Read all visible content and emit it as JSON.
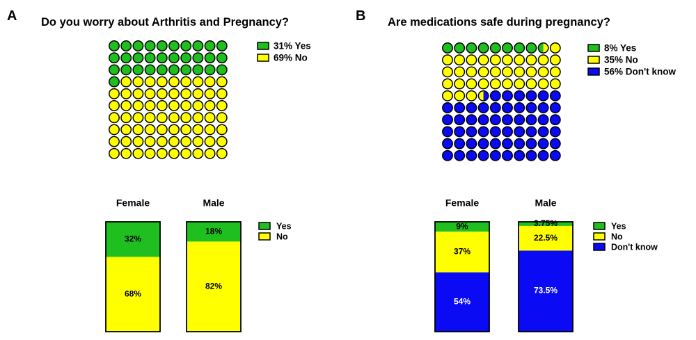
{
  "panels": [
    {
      "letter": "A",
      "title": "Do you worry about Arthritis and Pregnancy?"
    },
    {
      "letter": "B",
      "title": "Are medications safe during pregnancy?"
    }
  ],
  "colors": {
    "yes": "#1fbf1f",
    "no": "#ffff00",
    "dont_know": "#0a0af5",
    "stroke": "#000000"
  },
  "chart_data": [
    {
      "type": "waffle",
      "title": "Do you worry about Arthritis and Pregnancy?",
      "grid": [
        10,
        10
      ],
      "categories": [
        "Yes",
        "No"
      ],
      "values": [
        31,
        69
      ],
      "colors": [
        "#1fbf1f",
        "#ffff00"
      ],
      "legend": [
        "31% Yes",
        "69% No"
      ],
      "legend_position": "top-right"
    },
    {
      "type": "bar",
      "stacked": "percent",
      "categories": [
        "Female",
        "Male"
      ],
      "series": [
        {
          "name": "Yes",
          "values": [
            32,
            18
          ],
          "labels": [
            "32%",
            "18%"
          ],
          "color": "#1fbf1f"
        },
        {
          "name": "No",
          "values": [
            68,
            82
          ],
          "labels": [
            "68%",
            "82%"
          ],
          "color": "#ffff00"
        }
      ],
      "ylim": [
        0,
        100
      ],
      "legend_position": "top-right"
    },
    {
      "type": "waffle",
      "title": "Are medications safe during pregnancy?",
      "grid": [
        10,
        10
      ],
      "categories": [
        "Yes",
        "No",
        "Don't know"
      ],
      "values": [
        8.5,
        35,
        56.5
      ],
      "colors": [
        "#1fbf1f",
        "#ffff00",
        "#0a0af5"
      ],
      "legend": [
        "8% Yes",
        "35% No",
        "56% Don't know"
      ],
      "legend_position": "top-right"
    },
    {
      "type": "bar",
      "stacked": "percent",
      "categories": [
        "Female",
        "Male"
      ],
      "series": [
        {
          "name": "Yes",
          "values": [
            9,
            3.75
          ],
          "labels": [
            "9%",
            "3.75%"
          ],
          "color": "#1fbf1f"
        },
        {
          "name": "No",
          "values": [
            37,
            22.5
          ],
          "labels": [
            "37%",
            "22.5%"
          ],
          "color": "#ffff00"
        },
        {
          "name": "Don't know",
          "values": [
            54,
            73.5
          ],
          "labels": [
            "54%",
            "73.5%"
          ],
          "color": "#0a0af5"
        }
      ],
      "ylim": [
        0,
        100
      ],
      "legend_position": "top-right"
    }
  ]
}
